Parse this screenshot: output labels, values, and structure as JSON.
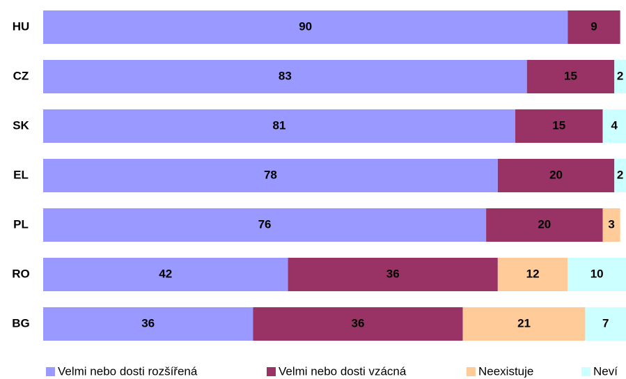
{
  "chart_data": {
    "type": "stacked-bar-horizontal",
    "categories": [
      "HU",
      "CZ",
      "SK",
      "EL",
      "PL",
      "RO",
      "BG"
    ],
    "series": [
      {
        "name": "Velmi nebo dosti rozšířená",
        "color": "#9999ff",
        "values": [
          90,
          83,
          81,
          78,
          76,
          42,
          36
        ]
      },
      {
        "name": "Velmi nebo dosti vzácná",
        "color": "#993366",
        "values": [
          9,
          15,
          15,
          20,
          20,
          36,
          36
        ]
      },
      {
        "name": "Neexistuje",
        "color": "#ffcc99",
        "values": [
          null,
          null,
          null,
          null,
          3,
          12,
          21
        ]
      },
      {
        "name": "Neví",
        "color": "#ccffff",
        "values": [
          null,
          2,
          4,
          2,
          null,
          10,
          7
        ]
      }
    ],
    "xlim": [
      0,
      100
    ]
  }
}
